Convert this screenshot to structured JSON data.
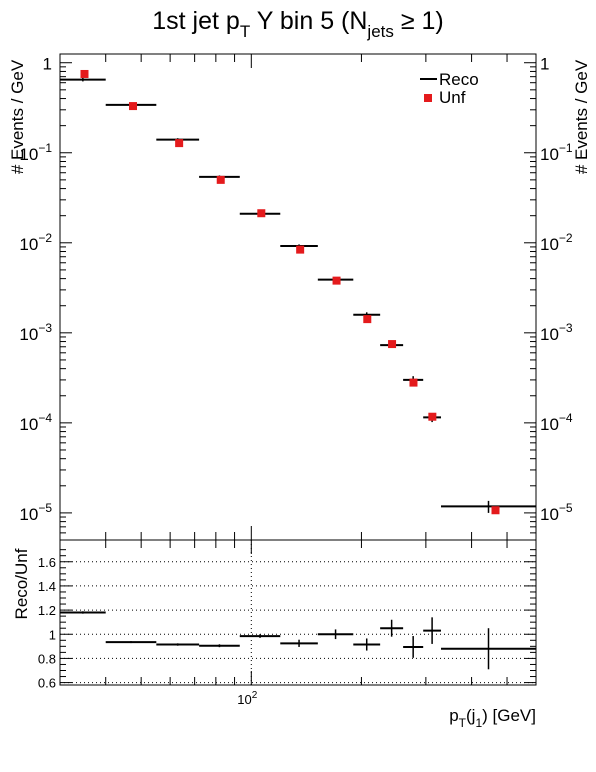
{
  "chart_data": [
    {
      "type": "scatter",
      "title": "1st jet p",
      "title_sub_T": "T",
      "title_rest": " Y bin 5 (N",
      "title_sub_jets": "jets",
      "title_end": " ≥ 1)",
      "ylabel": "# Events / GeV",
      "yscale": "log",
      "ylim": [
        5e-06,
        1.25
      ],
      "xscale": "log",
      "xlim": [
        30,
        600
      ],
      "ytick_labels": [
        {
          "v": 1,
          "base": "1",
          "exp": ""
        },
        {
          "v": 0.1,
          "base": "10",
          "exp": "−1"
        },
        {
          "v": 0.01,
          "base": "10",
          "exp": "−2"
        },
        {
          "v": 0.001,
          "base": "10",
          "exp": "−3"
        },
        {
          "v": 0.0001,
          "base": "10",
          "exp": "−4"
        },
        {
          "v": 1e-05,
          "base": "10",
          "exp": "−5"
        }
      ],
      "legend": [
        {
          "name": "Reco",
          "marker": "line",
          "color": "#000000"
        },
        {
          "name": "Unf",
          "marker": "square",
          "color": "#e41a1c"
        }
      ],
      "legend_position": "top-right",
      "series": [
        {
          "name": "Reco",
          "color": "#000000",
          "points": [
            {
              "x0": 30,
              "x1": 40,
              "y": 0.65,
              "err": 0.03
            },
            {
              "x0": 40,
              "x1": 55,
              "y": 0.34,
              "err": 0.012
            },
            {
              "x0": 55,
              "x1": 72,
              "y": 0.14,
              "err": 0.005
            },
            {
              "x0": 72,
              "x1": 93,
              "y": 0.054,
              "err": 0.002
            },
            {
              "x0": 93,
              "x1": 120,
              "y": 0.021,
              "err": 0.0009
            },
            {
              "x0": 120,
              "x1": 152,
              "y": 0.0092,
              "err": 0.0004
            },
            {
              "x0": 152,
              "x1": 190,
              "y": 0.0039,
              "err": 0.0002
            },
            {
              "x0": 190,
              "x1": 225,
              "y": 0.00159,
              "err": 0.0001
            },
            {
              "x0": 225,
              "x1": 260,
              "y": 0.00073,
              "err": 5e-05
            },
            {
              "x0": 260,
              "x1": 295,
              "y": 0.0003,
              "err": 3e-05
            },
            {
              "x0": 295,
              "x1": 330,
              "y": 0.000115,
              "err": 1.3e-05
            },
            {
              "x0": 330,
              "x1": 600,
              "y": 1.18e-05,
              "err": 1.8e-06
            }
          ]
        },
        {
          "name": "Unf",
          "color": "#e41a1c",
          "points": [
            {
              "x": 35,
              "y": 0.75
            },
            {
              "x": 47.5,
              "y": 0.33
            },
            {
              "x": 63.5,
              "y": 0.128
            },
            {
              "x": 82.5,
              "y": 0.05
            },
            {
              "x": 106.5,
              "y": 0.0213
            },
            {
              "x": 136,
              "y": 0.0084
            },
            {
              "x": 171,
              "y": 0.0038
            },
            {
              "x": 207.5,
              "y": 0.00142
            },
            {
              "x": 242.5,
              "y": 0.00075
            },
            {
              "x": 277.5,
              "y": 0.00028
            },
            {
              "x": 312.5,
              "y": 0.000117
            },
            {
              "x": 465,
              "y": 1.07e-05
            }
          ]
        }
      ]
    },
    {
      "type": "scatter",
      "ylabel": "Reco/Unf",
      "xlabel": "p",
      "xlabel_sub1": "T",
      "xlabel_mid": "(j",
      "xlabel_sub2": "1",
      "xlabel_end": ") [GeV]",
      "xscale": "log",
      "xlim": [
        30,
        600
      ],
      "ylim": [
        0.58,
        1.78
      ],
      "yticks": [
        "0.6",
        "0.8",
        "1",
        "1.2",
        "1.4",
        "1.6"
      ],
      "xtick_labels": [
        {
          "v": 100,
          "base": "10",
          "exp": "2"
        }
      ],
      "grid": true,
      "series": [
        {
          "name": "Reco/Unf",
          "color": "#000000",
          "points": [
            {
              "x0": 30,
              "x1": 40,
              "y": 1.18,
              "err": 0.01
            },
            {
              "x0": 40,
              "x1": 55,
              "y": 0.935,
              "err": 0.008
            },
            {
              "x0": 55,
              "x1": 72,
              "y": 0.915,
              "err": 0.01
            },
            {
              "x0": 72,
              "x1": 93,
              "y": 0.905,
              "err": 0.012
            },
            {
              "x0": 93,
              "x1": 120,
              "y": 0.985,
              "err": 0.015
            },
            {
              "x0": 120,
              "x1": 152,
              "y": 0.925,
              "err": 0.03
            },
            {
              "x0": 152,
              "x1": 190,
              "y": 1.0,
              "err": 0.04
            },
            {
              "x0": 190,
              "x1": 225,
              "y": 0.915,
              "err": 0.05
            },
            {
              "x0": 225,
              "x1": 260,
              "y": 1.05,
              "err": 0.07
            },
            {
              "x0": 260,
              "x1": 295,
              "y": 0.895,
              "err": 0.09
            },
            {
              "x0": 295,
              "x1": 330,
              "y": 1.03,
              "err": 0.11
            },
            {
              "x0": 330,
              "x1": 600,
              "y": 0.88,
              "err": 0.17
            }
          ]
        }
      ]
    }
  ]
}
